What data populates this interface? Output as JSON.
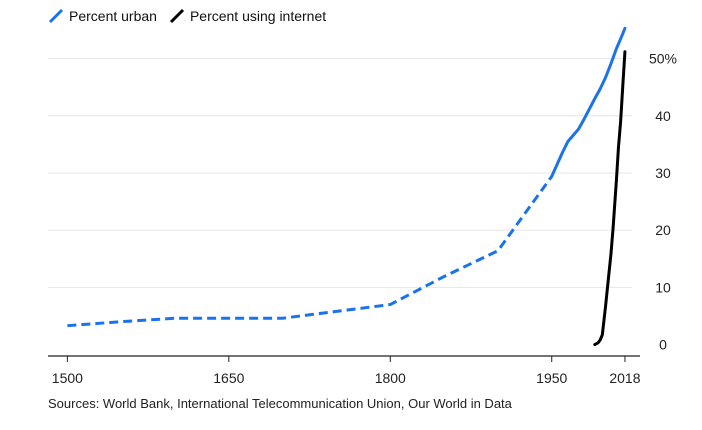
{
  "chart_data": {
    "type": "line",
    "x_ticks": [
      1500,
      1650,
      1800,
      1950,
      2018
    ],
    "y_ticks": [
      0,
      10,
      20,
      30,
      40,
      50
    ],
    "y_tick_labels": [
      "0",
      "10",
      "20",
      "30",
      "40",
      "50%"
    ],
    "xlim": [
      1482,
      2032
    ],
    "ylim": [
      -2,
      55
    ],
    "y_axis_position": "right",
    "grid": "horizontal",
    "series": [
      {
        "name": "Percent urban",
        "color": "#1a73e8",
        "style": "dashed then solid",
        "points": [
          [
            1500,
            3.3
          ],
          [
            1550,
            4
          ],
          [
            1600,
            4.6
          ],
          [
            1650,
            4.6
          ],
          [
            1700,
            4.6
          ],
          [
            1750,
            5.8
          ],
          [
            1800,
            7
          ],
          [
            1850,
            11.9
          ],
          [
            1900,
            16.4
          ],
          [
            1950,
            29.4
          ],
          [
            1960,
            33.6
          ],
          [
            1965,
            35.5
          ],
          [
            1970,
            36.6
          ],
          [
            1975,
            37.7
          ],
          [
            1980,
            39.4
          ],
          [
            1985,
            41.2
          ],
          [
            1990,
            43
          ],
          [
            1995,
            44.7
          ],
          [
            2000,
            46.7
          ],
          [
            2005,
            49.1
          ],
          [
            2010,
            51.7
          ],
          [
            2015,
            53.9
          ],
          [
            2018,
            55.3
          ]
        ]
      },
      {
        "name": "Percent using internet",
        "color": "#000000",
        "style": "solid",
        "points": [
          [
            1990,
            0
          ],
          [
            1993,
            0.3
          ],
          [
            1995,
            0.8
          ],
          [
            1997,
            1.7
          ],
          [
            2000,
            6.7
          ],
          [
            2003,
            12.2
          ],
          [
            2005,
            15.8
          ],
          [
            2007,
            20.4
          ],
          [
            2010,
            28.5
          ],
          [
            2012,
            34.5
          ],
          [
            2014,
            39
          ],
          [
            2016,
            45.2
          ],
          [
            2018,
            51.2
          ]
        ]
      }
    ],
    "source": "Sources: World Bank, International Telecommunication Union, Our World in Data"
  }
}
